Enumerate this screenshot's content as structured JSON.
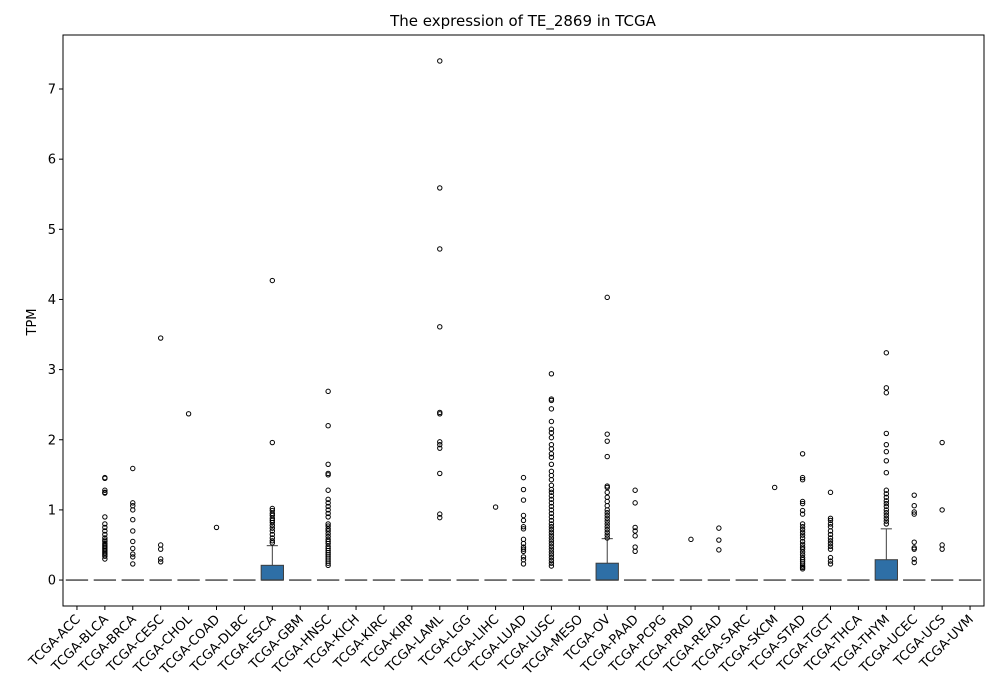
{
  "chart_data": {
    "type": "box",
    "title": "The expression of TE_2869 in TCGA",
    "xlabel": "",
    "ylabel": "TPM",
    "ylim": [
      -0.37,
      7.77
    ],
    "yticks": [
      0,
      1,
      2,
      3,
      4,
      5,
      6,
      7
    ],
    "grid": false,
    "box_color": "#2e6fa6",
    "categories": [
      "TCGA-ACC",
      "TCGA-BLCA",
      "TCGA-BRCA",
      "TCGA-CESC",
      "TCGA-CHOL",
      "TCGA-COAD",
      "TCGA-DLBC",
      "TCGA-ESCA",
      "TCGA-GBM",
      "TCGA-HNSC",
      "TCGA-KICH",
      "TCGA-KIRC",
      "TCGA-KIRP",
      "TCGA-LAML",
      "TCGA-LGG",
      "TCGA-LIHC",
      "TCGA-LUAD",
      "TCGA-LUSC",
      "TCGA-MESO",
      "TCGA-OV",
      "TCGA-PAAD",
      "TCGA-PCPG",
      "TCGA-PRAD",
      "TCGA-READ",
      "TCGA-SARC",
      "TCGA-SKCM",
      "TCGA-STAD",
      "TCGA-TGCT",
      "TCGA-THCA",
      "TCGA-THYM",
      "TCGA-UCEC",
      "TCGA-UCS",
      "TCGA-UVM"
    ],
    "boxes": [
      {
        "q1": 0,
        "median": 0,
        "q3": 0,
        "whislo": 0,
        "whishi": 0,
        "fliers": []
      },
      {
        "q1": 0,
        "median": 0,
        "q3": 0,
        "whislo": 0,
        "whishi": 0,
        "fliers": [
          1.46,
          1.45,
          1.28,
          1.25,
          1.24,
          0.9,
          0.8,
          0.75,
          0.7,
          0.65,
          0.6,
          0.57,
          0.55,
          0.52,
          0.5,
          0.48,
          0.46,
          0.44,
          0.42,
          0.4,
          0.38,
          0.36,
          0.34,
          0.3
        ]
      },
      {
        "q1": 0,
        "median": 0,
        "q3": 0,
        "whislo": 0,
        "whishi": 0,
        "fliers": [
          1.59,
          1.1,
          1.06,
          1.0,
          0.86,
          0.7,
          0.55,
          0.45,
          0.37,
          0.33,
          0.23
        ]
      },
      {
        "q1": 0,
        "median": 0,
        "q3": 0,
        "whislo": 0,
        "whishi": 0,
        "fliers": [
          3.45,
          0.5,
          0.44,
          0.3,
          0.26
        ]
      },
      {
        "q1": 0,
        "median": 0,
        "q3": 0,
        "whislo": 0,
        "whishi": 0,
        "fliers": [
          2.37
        ]
      },
      {
        "q1": 0,
        "median": 0,
        "q3": 0,
        "whislo": 0,
        "whishi": 0,
        "fliers": [
          0.75
        ]
      },
      {
        "q1": 0,
        "median": 0,
        "q3": 0,
        "whislo": 0,
        "whishi": 0,
        "fliers": []
      },
      {
        "q1": 0,
        "median": 0,
        "q3": 0.21,
        "whislo": 0,
        "whishi": 0.49,
        "fliers": [
          4.27,
          1.96,
          1.02,
          0.99,
          0.95,
          0.92,
          0.88,
          0.85,
          0.82,
          0.78,
          0.74,
          0.7,
          0.65,
          0.6,
          0.56,
          0.53
        ]
      },
      {
        "q1": 0,
        "median": 0,
        "q3": 0,
        "whislo": 0,
        "whishi": 0,
        "fliers": []
      },
      {
        "q1": 0,
        "median": 0,
        "q3": 0,
        "whislo": 0,
        "whishi": 0,
        "fliers": [
          2.69,
          2.2,
          1.65,
          1.52,
          1.5,
          1.28,
          1.15,
          1.1,
          1.05,
          1.0,
          0.95,
          0.9,
          0.8,
          0.77,
          0.73,
          0.7,
          0.66,
          0.62,
          0.58,
          0.55,
          0.52,
          0.48,
          0.45,
          0.42,
          0.39,
          0.36,
          0.33,
          0.3,
          0.27,
          0.24,
          0.21
        ]
      },
      {
        "q1": 0,
        "median": 0,
        "q3": 0,
        "whislo": 0,
        "whishi": 0,
        "fliers": []
      },
      {
        "q1": 0,
        "median": 0,
        "q3": 0,
        "whislo": 0,
        "whishi": 0,
        "fliers": []
      },
      {
        "q1": 0,
        "median": 0,
        "q3": 0,
        "whislo": 0,
        "whishi": 0,
        "fliers": []
      },
      {
        "q1": 0,
        "median": 0,
        "q3": 0,
        "whislo": 0,
        "whishi": 0,
        "fliers": [
          7.4,
          5.59,
          4.72,
          3.61,
          2.39,
          2.37,
          1.97,
          1.93,
          1.88,
          1.52,
          0.94,
          0.89
        ]
      },
      {
        "q1": 0,
        "median": 0,
        "q3": 0,
        "whislo": 0,
        "whishi": 0,
        "fliers": []
      },
      {
        "q1": 0,
        "median": 0,
        "q3": 0,
        "whislo": 0,
        "whishi": 0,
        "fliers": [
          1.04
        ]
      },
      {
        "q1": 0,
        "median": 0,
        "q3": 0,
        "whislo": 0,
        "whishi": 0,
        "fliers": [
          1.46,
          1.29,
          1.14,
          0.92,
          0.85,
          0.76,
          0.73,
          0.58,
          0.52,
          0.47,
          0.44,
          0.41,
          0.33,
          0.29,
          0.23
        ]
      },
      {
        "q1": 0,
        "median": 0,
        "q3": 0,
        "whislo": 0,
        "whishi": 0,
        "fliers": [
          2.94,
          2.58,
          2.56,
          2.44,
          2.26,
          2.15,
          2.1,
          2.03,
          1.93,
          1.87,
          1.8,
          1.75,
          1.65,
          1.55,
          1.49,
          1.43,
          1.35,
          1.29,
          1.25,
          1.2,
          1.15,
          1.1,
          1.05,
          1.0,
          0.95,
          0.9,
          0.85,
          0.8,
          0.76,
          0.72,
          0.68,
          0.64,
          0.6,
          0.56,
          0.52,
          0.48,
          0.44,
          0.4,
          0.36,
          0.32,
          0.28,
          0.24,
          0.2
        ]
      },
      {
        "q1": 0,
        "median": 0,
        "q3": 0,
        "whislo": 0,
        "whishi": 0,
        "fliers": []
      },
      {
        "q1": 0,
        "median": 0,
        "q3": 0.24,
        "whislo": 0,
        "whishi": 0.59,
        "fliers": [
          4.03,
          2.08,
          1.98,
          1.76,
          1.34,
          1.32,
          1.25,
          1.18,
          1.12,
          1.06,
          1.0,
          0.96,
          0.92,
          0.88,
          0.84,
          0.8,
          0.76,
          0.72,
          0.68,
          0.64,
          0.6
        ]
      },
      {
        "q1": 0,
        "median": 0,
        "q3": 0,
        "whislo": 0,
        "whishi": 0,
        "fliers": [
          1.28,
          1.1,
          0.75,
          0.7,
          0.63,
          0.47,
          0.41
        ]
      },
      {
        "q1": 0,
        "median": 0,
        "q3": 0,
        "whislo": 0,
        "whishi": 0,
        "fliers": []
      },
      {
        "q1": 0,
        "median": 0,
        "q3": 0,
        "whislo": 0,
        "whishi": 0,
        "fliers": [
          0.58
        ]
      },
      {
        "q1": 0,
        "median": 0,
        "q3": 0,
        "whislo": 0,
        "whishi": 0,
        "fliers": [
          0.74,
          0.57,
          0.43
        ]
      },
      {
        "q1": 0,
        "median": 0,
        "q3": 0,
        "whislo": 0,
        "whishi": 0,
        "fliers": []
      },
      {
        "q1": 0,
        "median": 0,
        "q3": 0,
        "whislo": 0,
        "whishi": 0,
        "fliers": [
          1.32
        ]
      },
      {
        "q1": 0,
        "median": 0,
        "q3": 0,
        "whislo": 0,
        "whishi": 0,
        "fliers": [
          1.8,
          1.46,
          1.43,
          1.12,
          1.09,
          0.99,
          0.94,
          0.8,
          0.76,
          0.72,
          0.68,
          0.64,
          0.6,
          0.55,
          0.51,
          0.47,
          0.44,
          0.4,
          0.36,
          0.32,
          0.29,
          0.26,
          0.23,
          0.2,
          0.18,
          0.16
        ]
      },
      {
        "q1": 0,
        "median": 0,
        "q3": 0,
        "whislo": 0,
        "whishi": 0,
        "fliers": [
          1.25,
          0.88,
          0.85,
          0.8,
          0.76,
          0.7,
          0.65,
          0.6,
          0.56,
          0.52,
          0.48,
          0.44,
          0.32,
          0.27,
          0.23
        ]
      },
      {
        "q1": 0,
        "median": 0,
        "q3": 0,
        "whislo": 0,
        "whishi": 0,
        "fliers": []
      },
      {
        "q1": 0,
        "median": 0,
        "q3": 0.29,
        "whislo": 0,
        "whishi": 0.73,
        "fliers": [
          3.24,
          2.74,
          2.67,
          2.09,
          1.93,
          1.83,
          1.7,
          1.53,
          1.28,
          1.23,
          1.18,
          1.13,
          1.09,
          1.05,
          1.0,
          0.96,
          0.92,
          0.88,
          0.84,
          0.8
        ]
      },
      {
        "q1": 0,
        "median": 0,
        "q3": 0,
        "whislo": 0,
        "whishi": 0,
        "fliers": [
          1.21,
          1.06,
          0.97,
          0.94,
          0.54,
          0.46,
          0.44,
          0.3,
          0.25
        ]
      },
      {
        "q1": 0,
        "median": 0,
        "q3": 0,
        "whislo": 0,
        "whishi": 0,
        "fliers": [
          1.96,
          1.0,
          0.5,
          0.44
        ]
      },
      {
        "q1": 0,
        "median": 0,
        "q3": 0,
        "whislo": 0,
        "whishi": 0,
        "fliers": []
      }
    ]
  }
}
